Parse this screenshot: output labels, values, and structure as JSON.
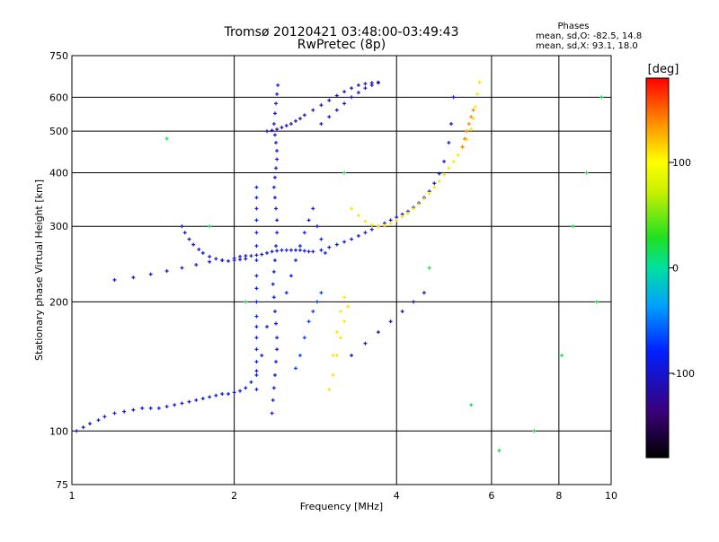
{
  "header": {
    "title": "Tromsø 20120421 03:48:00-03:49:43",
    "subtitle": "RwPretec (8p)",
    "stats_heading": "Phases",
    "stats_o": "mean, sd,O: -82.5, 14.8",
    "stats_x": "mean, sd,X: 93.1, 18.0"
  },
  "chart_data": {
    "type": "scatter",
    "title": "Tromsø 20120421 03:48:00-03:49:43",
    "subtitle": "RwPretec (8p)",
    "xlabel": "Frequency [MHz]",
    "ylabel": "Stationary phase Virtual Height [km]",
    "xscale": "log",
    "yscale": "log",
    "xlim": [
      1,
      10
    ],
    "ylim": [
      75,
      750
    ],
    "x_ticks": [
      1,
      2,
      4,
      6,
      8,
      10
    ],
    "x_tick_labels": [
      "1",
      "2",
      "4",
      "6",
      "8",
      "10"
    ],
    "y_ticks": [
      75,
      100,
      200,
      300,
      400,
      500,
      600,
      750
    ],
    "y_tick_labels": [
      "75",
      "100",
      "200",
      "300",
      "400",
      "500",
      "600",
      "750"
    ],
    "grid": true,
    "colorbar": {
      "label": "[deg]",
      "range": [
        -180,
        180
      ],
      "ticks": [
        100,
        0,
        -100
      ],
      "tick_labels": [
        "100",
        "0",
        "-100"
      ]
    },
    "series": [
      {
        "phase_deg": -95,
        "x": [
          1.02,
          1.05,
          1.08,
          1.12,
          1.15,
          1.2,
          1.25,
          1.3,
          1.35,
          1.4,
          1.45,
          1.5,
          1.55,
          1.6,
          1.65,
          1.7,
          1.75,
          1.8,
          1.85,
          1.9,
          1.95,
          2.0,
          2.05,
          2.1,
          2.15,
          2.2,
          2.25,
          2.3
        ],
        "y": [
          100,
          102,
          104,
          106,
          108,
          110,
          111,
          112,
          113,
          113,
          113,
          114,
          115,
          116,
          117,
          118,
          119,
          120,
          121,
          122,
          122,
          123,
          124,
          126,
          130,
          138,
          150,
          175
        ]
      },
      {
        "phase_deg": -95,
        "x": [
          1.2,
          1.3,
          1.4,
          1.5,
          1.6,
          1.7,
          1.8,
          1.9,
          2.0,
          2.05,
          2.1,
          2.15,
          2.2,
          2.25,
          2.3,
          2.35,
          2.4,
          2.45,
          2.5,
          2.55,
          2.6,
          2.65,
          2.7,
          2.75,
          2.8,
          2.9,
          3.0,
          3.1,
          3.2,
          3.3,
          3.4,
          3.5,
          3.6,
          3.7,
          3.8,
          3.9,
          4.0,
          4.1,
          4.2,
          4.3,
          4.4,
          4.5,
          4.6,
          4.7,
          4.8,
          4.9,
          5.0,
          5.05,
          5.1
        ],
        "y": [
          225,
          228,
          232,
          236,
          240,
          244,
          248,
          250,
          253,
          255,
          256,
          256,
          257,
          258,
          260,
          262,
          263,
          264,
          264,
          264,
          264,
          264,
          263,
          262,
          262,
          264,
          268,
          272,
          276,
          280,
          285,
          290,
          295,
          300,
          305,
          310,
          315,
          320,
          325,
          332,
          340,
          350,
          362,
          378,
          398,
          425,
          470,
          520,
          600
        ]
      },
      {
        "phase_deg": -100,
        "x": [
          1.6,
          1.62,
          1.65,
          1.68,
          1.72,
          1.75,
          1.8,
          1.85,
          1.9,
          1.95,
          2.0,
          2.05,
          2.1
        ],
        "y": [
          300,
          290,
          280,
          272,
          265,
          260,
          255,
          252,
          250,
          249,
          250,
          251,
          252
        ]
      },
      {
        "phase_deg": -110,
        "x": [
          2.3,
          2.35,
          2.4,
          2.45,
          2.5,
          2.55,
          2.6,
          2.65,
          2.7,
          2.8,
          2.9,
          3.0,
          3.1,
          3.2,
          3.3,
          3.4,
          3.5,
          3.6,
          3.7
        ],
        "y": [
          500,
          502,
          505,
          510,
          515,
          520,
          528,
          535,
          545,
          560,
          575,
          590,
          605,
          618,
          630,
          640,
          645,
          648,
          650
        ]
      },
      {
        "phase_deg": -110,
        "x": [
          2.9,
          3.0,
          3.1,
          3.2,
          3.3,
          3.4,
          3.5,
          3.6,
          3.7
        ],
        "y": [
          520,
          540,
          560,
          580,
          600,
          615,
          630,
          640,
          648
        ]
      },
      {
        "phase_deg": -80,
        "x": [
          2.2,
          2.2,
          2.2,
          2.2,
          2.2,
          2.2,
          2.2,
          2.2,
          2.2,
          2.2,
          2.2,
          2.2,
          2.2,
          2.2,
          2.2,
          2.2,
          2.2
        ],
        "y": [
          125,
          135,
          145,
          155,
          165,
          175,
          185,
          200,
          215,
          230,
          250,
          270,
          290,
          310,
          330,
          350,
          370
        ]
      },
      {
        "phase_deg": -90,
        "x": [
          2.35,
          2.36,
          2.37,
          2.38,
          2.39,
          2.4,
          2.4,
          2.39,
          2.38,
          2.37,
          2.36,
          2.37,
          2.38,
          2.39,
          2.4,
          2.4,
          2.39,
          2.38,
          2.37,
          2.38,
          2.39,
          2.4,
          2.4,
          2.39,
          2.38,
          2.37,
          2.38,
          2.39,
          2.4,
          2.41
        ],
        "y": [
          110,
          118,
          126,
          135,
          145,
          155,
          165,
          178,
          190,
          205,
          220,
          235,
          250,
          270,
          290,
          310,
          330,
          350,
          370,
          390,
          410,
          430,
          450,
          470,
          490,
          520,
          550,
          580,
          610,
          640
        ]
      },
      {
        "phase_deg": -85,
        "x": [
          2.5,
          2.55,
          2.6,
          2.65,
          2.7,
          2.75,
          2.8,
          2.85,
          2.9,
          2.95
        ],
        "y": [
          210,
          230,
          250,
          270,
          290,
          310,
          330,
          300,
          280,
          260
        ]
      },
      {
        "phase_deg": -70,
        "x": [
          2.6,
          2.65,
          2.7,
          2.75,
          2.8,
          2.85,
          2.9
        ],
        "y": [
          140,
          150,
          165,
          180,
          190,
          200,
          210
        ]
      },
      {
        "phase_deg": 110,
        "x": [
          3.3,
          3.4,
          3.5,
          3.6,
          3.7,
          3.8,
          3.9,
          4.0,
          4.1,
          4.2,
          4.3,
          4.4,
          4.5,
          4.6,
          4.7,
          4.8,
          4.9,
          5.0,
          5.1,
          5.2,
          5.3,
          5.4,
          5.5,
          5.55,
          5.6,
          5.65,
          5.7
        ],
        "y": [
          330,
          318,
          308,
          302,
          300,
          301,
          305,
          310,
          316,
          322,
          330,
          338,
          348,
          358,
          370,
          382,
          396,
          410,
          425,
          440,
          458,
          478,
          505,
          535,
          570,
          610,
          650
        ]
      },
      {
        "phase_deg": 110,
        "x": [
          3.0,
          3.05,
          3.1,
          3.15,
          3.2,
          3.25,
          3.2,
          3.15,
          3.1,
          3.05
        ],
        "y": [
          125,
          135,
          150,
          165,
          180,
          195,
          205,
          190,
          170,
          150
        ]
      },
      {
        "phase_deg": 140,
        "x": [
          5.3,
          5.35,
          5.4,
          5.45,
          5.5,
          5.55
        ],
        "y": [
          460,
          480,
          500,
          520,
          540,
          560
        ]
      },
      {
        "phase_deg": -120,
        "x": [
          3.3,
          3.5,
          3.7,
          3.9,
          4.1,
          4.3,
          4.5
        ],
        "y": [
          150,
          160,
          170,
          180,
          190,
          200,
          210
        ]
      },
      {
        "phase_deg": 20,
        "x": [
          1.5,
          1.8,
          2.1,
          3.2,
          4.6,
          5.5,
          6.2,
          7.2,
          8.1,
          8.5,
          9.0,
          9.4,
          9.6
        ],
        "y": [
          480,
          300,
          200,
          400,
          240,
          115,
          90,
          100,
          150,
          300,
          400,
          200,
          600
        ]
      }
    ]
  }
}
